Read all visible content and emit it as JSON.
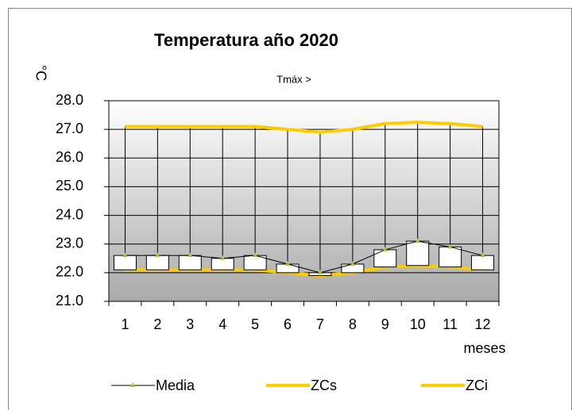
{
  "chart_data": {
    "type": "stock",
    "title": "Temperatura año 2020",
    "y_label": "°C",
    "x_label": "meses",
    "annotation": "Tmáx >",
    "categories": [
      "1",
      "2",
      "3",
      "4",
      "5",
      "6",
      "7",
      "8",
      "9",
      "10",
      "11",
      "12"
    ],
    "series": [
      {
        "name": "Media",
        "color": "#000000",
        "marker_color": "#9acd32",
        "values": [
          22.6,
          22.6,
          22.6,
          22.5,
          22.6,
          22.3,
          22.0,
          22.3,
          22.8,
          23.1,
          22.9,
          22.6
        ]
      },
      {
        "name": "ZCs",
        "color": "#ffcc00",
        "values": [
          27.1,
          27.1,
          27.1,
          27.1,
          27.1,
          27.0,
          26.9,
          27.0,
          27.2,
          27.25,
          27.2,
          27.1
        ]
      },
      {
        "name": "ZCi",
        "color": "#ffcc00",
        "values": [
          22.1,
          22.1,
          22.1,
          22.1,
          22.1,
          22.0,
          21.9,
          22.0,
          22.2,
          22.25,
          22.2,
          22.1
        ]
      }
    ],
    "ylim": [
      21,
      28
    ],
    "yticks": [
      {
        "value": 21,
        "label": "21.0"
      },
      {
        "value": 22,
        "label": "22.0"
      },
      {
        "value": 23,
        "label": "23.0"
      },
      {
        "value": 24,
        "label": "24.0"
      },
      {
        "value": 25,
        "label": "25.0"
      },
      {
        "value": 26,
        "label": "26.0"
      },
      {
        "value": 27,
        "label": "27.0"
      },
      {
        "value": 28,
        "label": "28.0"
      }
    ],
    "grid": true
  }
}
